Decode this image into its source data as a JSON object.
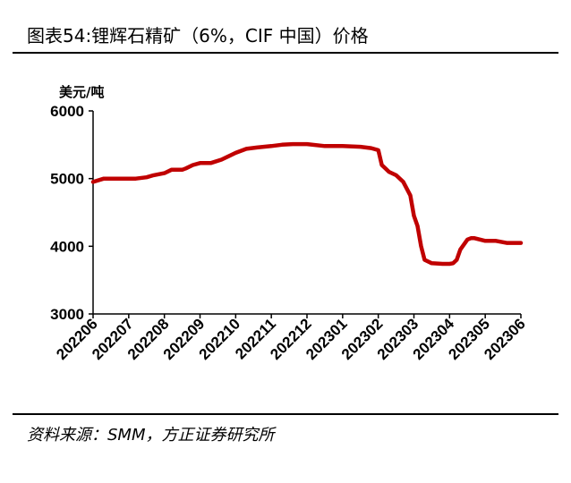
{
  "title": "图表54:锂辉石精矿（6%，CIF 中国）价格",
  "source": "资料来源：SMM，方正证券研究所",
  "chart_data": {
    "type": "line",
    "ylabel": "美元/吨",
    "ylim": [
      3000,
      6000
    ],
    "yticks": [
      3000,
      4000,
      5000,
      6000
    ],
    "xticks": [
      "202206",
      "202207",
      "202208",
      "202209",
      "202210",
      "202211",
      "202212",
      "202301",
      "202302",
      "202303",
      "202304",
      "202305",
      "202306"
    ],
    "line_color": "#c00000",
    "series": [
      {
        "x": [
          0,
          0.3,
          0.8,
          1.2,
          1.5,
          1.7,
          2.0,
          2.2,
          2.5,
          2.6,
          2.8,
          3.0,
          3.3,
          3.6,
          4.0,
          4.3,
          4.6,
          5.0,
          5.3,
          5.6,
          6.0,
          6.5,
          7.0,
          7.5,
          7.8,
          8.0,
          8.1,
          8.2,
          8.3,
          8.5,
          8.7,
          8.9,
          9.0,
          9.1,
          9.2,
          9.3,
          9.5,
          9.8,
          10.0,
          10.1,
          10.2,
          10.3,
          10.5,
          10.6,
          10.7,
          11.0,
          11.3,
          11.6,
          12.0
        ],
        "y": [
          4950,
          5000,
          5000,
          5000,
          5020,
          5050,
          5080,
          5130,
          5130,
          5150,
          5200,
          5230,
          5230,
          5280,
          5380,
          5440,
          5460,
          5480,
          5500,
          5510,
          5510,
          5480,
          5480,
          5470,
          5450,
          5420,
          5200,
          5150,
          5100,
          5050,
          4950,
          4750,
          4450,
          4300,
          4000,
          3800,
          3750,
          3740,
          3740,
          3750,
          3800,
          3950,
          4100,
          4120,
          4120,
          4080,
          4080,
          4050,
          4050
        ]
      }
    ]
  }
}
